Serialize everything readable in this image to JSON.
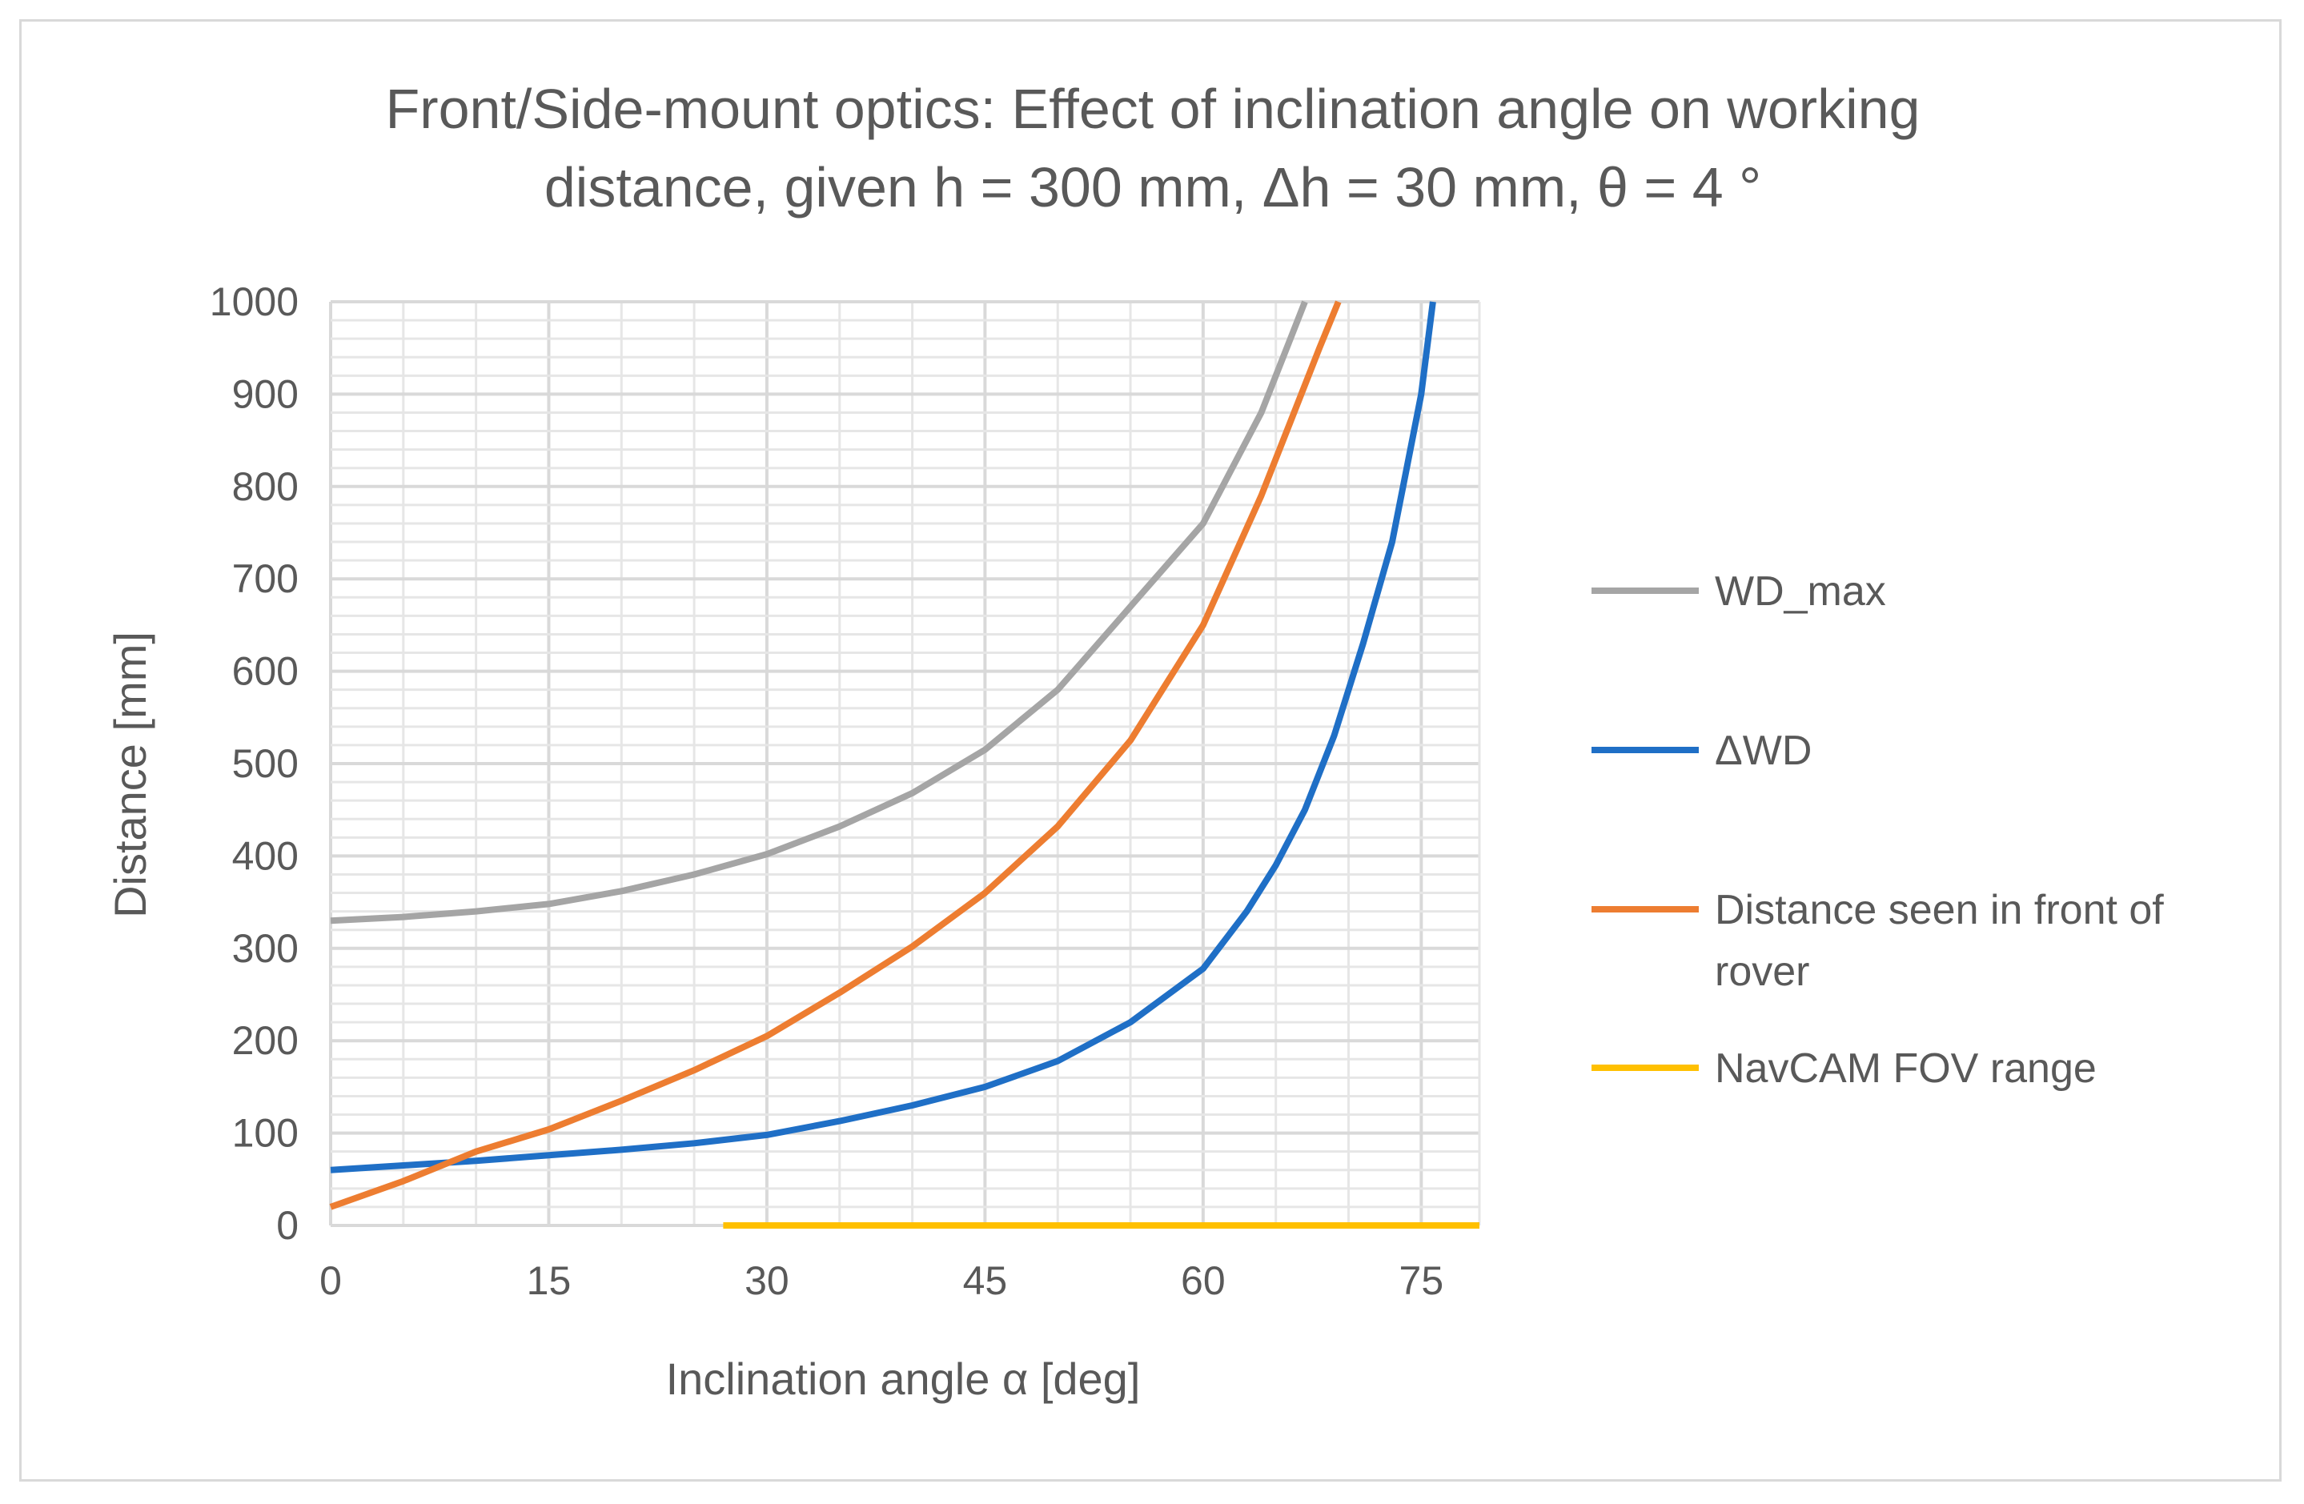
{
  "chart_data": {
    "type": "line",
    "title": "Front/Side-mount optics: Effect of inclination angle on working distance, given h = 300 mm, Δh = 30 mm, θ = 4 °",
    "title_lines": [
      "Front/Side-mount optics: Effect of inclination angle on working",
      "distance, given h = 300 mm, Δh = 30 mm, θ = 4 °"
    ],
    "xlabel": "Inclination angle α [deg]",
    "ylabel": "Distance [mm]",
    "xlim": [
      0,
      79
    ],
    "ylim": [
      0,
      1000
    ],
    "xticks": [
      0,
      15,
      30,
      45,
      60,
      75
    ],
    "yticks": [
      0,
      100,
      200,
      300,
      400,
      500,
      600,
      700,
      800,
      900,
      1000
    ],
    "grid": true,
    "legend_position": "right",
    "series": [
      {
        "name": "WD_max",
        "color": "#a5a5a5",
        "x": [
          0,
          5,
          10,
          15,
          20,
          25,
          30,
          35,
          40,
          45,
          50,
          55,
          60,
          62,
          64,
          66,
          67
        ],
        "y": [
          330,
          334,
          340,
          348,
          362,
          380,
          402,
          432,
          468,
          515,
          580,
          670,
          760,
          820,
          880,
          960,
          1000
        ]
      },
      {
        "name": "ΔWD",
        "legend_label": "ΔWD",
        "color": "#1f6fc6",
        "x": [
          0,
          5,
          10,
          15,
          20,
          25,
          30,
          35,
          40,
          45,
          50,
          55,
          60,
          63,
          65,
          67,
          69,
          71,
          73,
          74,
          75,
          75.8
        ],
        "y": [
          60,
          65,
          70,
          76,
          82,
          89,
          98,
          113,
          130,
          150,
          178,
          220,
          278,
          340,
          390,
          450,
          530,
          630,
          740,
          820,
          900,
          1000
        ]
      },
      {
        "name": "Distance seen in front of rover",
        "legend_lines": [
          "Distance seen in front of",
          "rover"
        ],
        "color": "#ed7d31",
        "x": [
          0,
          5,
          10,
          15,
          20,
          25,
          30,
          35,
          40,
          45,
          50,
          55,
          60,
          62,
          64,
          66,
          68,
          69.3
        ],
        "y": [
          20,
          48,
          80,
          104,
          135,
          168,
          205,
          252,
          302,
          360,
          432,
          525,
          650,
          720,
          790,
          870,
          950,
          1000
        ]
      },
      {
        "name": "NavCAM FOV range",
        "color": "#ffc000",
        "x": [
          27,
          79
        ],
        "y": [
          0,
          0
        ]
      }
    ]
  }
}
